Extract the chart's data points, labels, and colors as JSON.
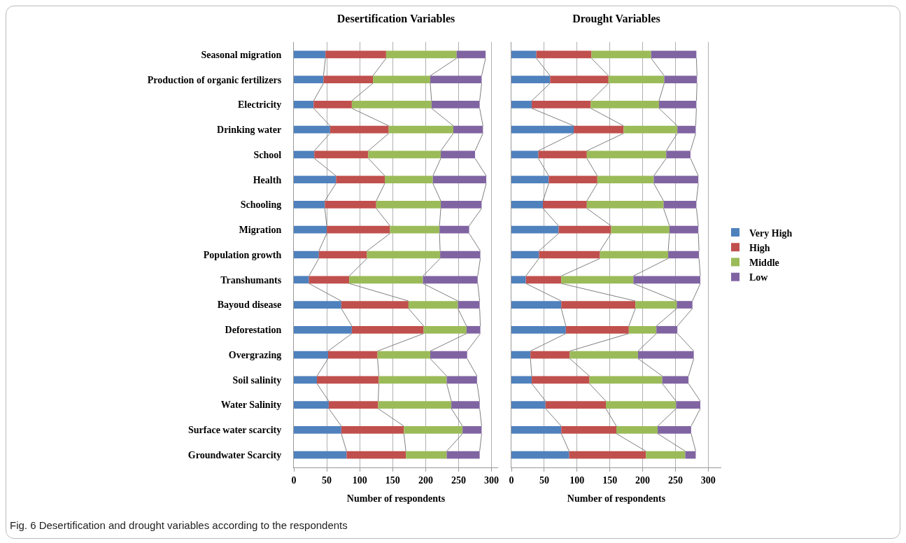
{
  "chart_data": [
    {
      "type": "bar",
      "title": "Desertification Variables",
      "xlabel": "Number of respondents",
      "orientation": "horizontal",
      "stacked": true,
      "categories": [
        "Seasonal migration",
        "Production of organic fertilizers",
        "Electricity",
        "Drinking water",
        "School",
        "Health",
        "Schooling",
        "Migration",
        "Population growth",
        "Transhumants",
        "Bayoud disease",
        "Deforestation",
        "Overgrazing",
        "Soil salinity",
        "Water Salinity",
        "Surface water scarcity",
        "Groundwater Scarcity"
      ],
      "series": [
        {
          "color": "#4f81bd",
          "values": [
            48,
            45,
            30,
            55,
            31,
            64,
            47,
            50,
            38,
            23,
            72,
            88,
            52,
            35,
            53,
            72,
            80
          ]
        },
        {
          "color": "#c0504d",
          "values": [
            92,
            75,
            58,
            89,
            82,
            74,
            78,
            96,
            73,
            61,
            102,
            109,
            75,
            94,
            75,
            95,
            90
          ]
        },
        {
          "color": "#9bbb59",
          "values": [
            107,
            87,
            121,
            98,
            110,
            73,
            98,
            75,
            111,
            112,
            75,
            65,
            80,
            103,
            111,
            89,
            62
          ]
        },
        {
          "color": "#8064a2",
          "values": [
            44,
            78,
            73,
            45,
            52,
            81,
            62,
            45,
            61,
            83,
            33,
            21,
            56,
            46,
            43,
            29,
            50
          ]
        }
      ],
      "xlim": [
        0,
        310
      ],
      "xticks": [
        0,
        50,
        100,
        150,
        200,
        250,
        300
      ],
      "grid": "x",
      "legend": false,
      "annotations": [
        "Fig. 6 Desertification and drought variables according to the respondents"
      ]
    },
    {
      "type": "bar",
      "title": "Drought Variables",
      "xlabel": "Number of respondents",
      "orientation": "horizontal",
      "stacked": true,
      "categories": [
        null,
        null,
        null,
        null,
        null,
        null,
        null,
        null,
        null,
        null,
        null,
        null,
        null,
        null,
        null,
        null,
        null
      ],
      "series": [
        {
          "name": "Very High",
          "color": "#4f81bd",
          "values": [
            38,
            59,
            31,
            95,
            41,
            57,
            48,
            72,
            42,
            22,
            76,
            83,
            29,
            31,
            52,
            76,
            88
          ]
        },
        {
          "name": "High",
          "color": "#c0504d",
          "values": [
            84,
            89,
            90,
            76,
            74,
            74,
            67,
            80,
            93,
            54,
            113,
            96,
            60,
            88,
            92,
            84,
            117
          ]
        },
        {
          "name": "Middle",
          "color": "#9bbb59",
          "values": [
            91,
            85,
            104,
            82,
            121,
            86,
            117,
            89,
            104,
            110,
            63,
            42,
            104,
            111,
            107,
            63,
            60
          ]
        },
        {
          "name": "Low",
          "color": "#8064a2",
          "values": [
            69,
            50,
            57,
            28,
            37,
            68,
            50,
            44,
            47,
            102,
            24,
            32,
            85,
            40,
            37,
            51,
            16
          ]
        }
      ],
      "xlim": [
        0,
        320
      ],
      "xticks": [
        0,
        50,
        100,
        150,
        200,
        250,
        300
      ],
      "grid": "x",
      "legend": "right",
      "tick_labels": "x"
    }
  ]
}
